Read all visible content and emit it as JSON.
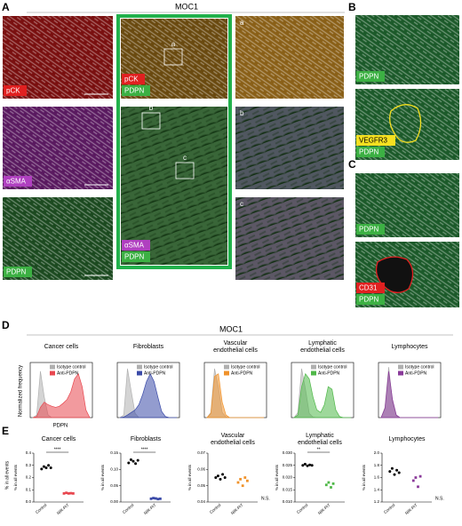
{
  "panel_labels": [
    "A",
    "B",
    "C",
    "D",
    "E"
  ],
  "panel_a": {
    "title": "MOC1",
    "images": [
      {
        "labels": [
          "pCK"
        ]
      },
      {
        "labels": [
          "αSMA"
        ]
      },
      {
        "labels": [
          "PDPN"
        ]
      },
      {
        "labels": [
          "pCK",
          "PDPN"
        ]
      },
      {
        "labels": [
          "αSMA",
          "PDPN"
        ]
      }
    ],
    "insets": [
      "a",
      "b",
      "c"
    ]
  },
  "panel_b": {
    "images": [
      {
        "labels": [
          "PDPN"
        ]
      },
      {
        "labels": [
          "VEGFR3",
          "PDPN"
        ]
      }
    ]
  },
  "panel_c": {
    "images": [
      {
        "labels": [
          "PDPN"
        ]
      },
      {
        "labels": [
          "CD31",
          "PDPN"
        ]
      }
    ]
  },
  "panel_d": {
    "title": "MOC1",
    "y_label": "Normalized frequency",
    "x_label": "PDPN",
    "charts": [
      {
        "type": "area",
        "title_lines": [
          "Cancer cells"
        ],
        "ylim": [
          0,
          100
        ],
        "series": [
          {
            "name": "Isotype control",
            "color": "#b0b0b0",
            "values": [
              0,
              5,
              90,
              40,
              5,
              0,
              0,
              0,
              0,
              0,
              0,
              0,
              0,
              0,
              0,
              0
            ]
          },
          {
            "name": "Anti-PDPN",
            "color": "#e8474f",
            "values": [
              0,
              2,
              20,
              30,
              25,
              22,
              20,
              22,
              28,
              35,
              50,
              75,
              85,
              60,
              15,
              0
            ]
          }
        ]
      },
      {
        "type": "area",
        "title_lines": [
          "Fibroblasts"
        ],
        "ylim": [
          0,
          100
        ],
        "series": [
          {
            "name": "Isotype control",
            "color": "#b0b0b0",
            "values": [
              0,
              5,
              95,
              50,
              8,
              0,
              0,
              0,
              0,
              0,
              0,
              0,
              0,
              0,
              0,
              0
            ]
          },
          {
            "name": "Anti-PDPN",
            "color": "#3a4aa8",
            "values": [
              0,
              1,
              5,
              10,
              15,
              25,
              45,
              70,
              85,
              70,
              40,
              12,
              2,
              0,
              0,
              0
            ]
          }
        ]
      },
      {
        "type": "area",
        "title_lines": [
          "Vascular",
          "endothelial cells"
        ],
        "ylim": [
          0,
          100
        ],
        "series": [
          {
            "name": "Isotype control",
            "color": "#b0b0b0",
            "values": [
              0,
              10,
              95,
              60,
              10,
              1,
              0,
              0,
              0,
              0,
              0,
              0,
              0,
              0,
              0,
              0
            ]
          },
          {
            "name": "Anti-PDPN",
            "color": "#f0922a",
            "values": [
              0,
              8,
              80,
              85,
              30,
              5,
              0,
              0,
              0,
              0,
              0,
              0,
              0,
              0,
              0,
              0
            ]
          }
        ]
      },
      {
        "type": "area",
        "title_lines": [
          "Lymphatic",
          "endothelial cells"
        ],
        "ylim": [
          0,
          100
        ],
        "series": [
          {
            "name": "Isotype control",
            "color": "#b0b0b0",
            "values": [
              0,
              10,
              95,
              55,
              8,
              1,
              0,
              0,
              0,
              0,
              0,
              0,
              0,
              0,
              0,
              0
            ]
          },
          {
            "name": "Anti-PDPN",
            "color": "#4fb848",
            "values": [
              0,
              5,
              60,
              85,
              75,
              40,
              15,
              10,
              25,
              60,
              55,
              15,
              2,
              0,
              0,
              0
            ]
          }
        ]
      },
      {
        "type": "area",
        "title_lines": [
          "Lymphocytes"
        ],
        "ylim": [
          0,
          100
        ],
        "series": [
          {
            "name": "Isotype control",
            "color": "#b0b0b0",
            "values": [
              0,
              20,
              98,
              30,
              3,
              0,
              0,
              0,
              0,
              0,
              0,
              0,
              0,
              0,
              0,
              0
            ]
          },
          {
            "name": "Anti-PDPN",
            "color": "#8a3a9a",
            "values": [
              0,
              18,
              90,
              35,
              5,
              0,
              0,
              0,
              0,
              0,
              0,
              0,
              0,
              0,
              0,
              0
            ]
          }
        ]
      }
    ]
  },
  "panel_e": {
    "y_label": "% in all events",
    "categories": [
      "Control",
      "NIR-PIT"
    ],
    "charts": [
      {
        "type": "scatter",
        "title_lines": [
          "Cancer cells"
        ],
        "ylim": [
          0,
          0.4
        ],
        "yticks": [
          {
            "value": 0,
            "label": "0.0"
          },
          0.1,
          0.2,
          0.3,
          0.4
        ],
        "series": [
          {
            "color": "#000000",
            "values": [
              0.27,
              0.29,
              0.28,
              0.3,
              0.28
            ]
          },
          {
            "color": "#e8474f",
            "values": [
              0.07,
              0.075,
              0.07,
              0.072,
              0.07
            ]
          }
        ],
        "significance": "****"
      },
      {
        "type": "scatter",
        "title_lines": [
          "Fibroblasts"
        ],
        "ylim": [
          0,
          0.15
        ],
        "yticks": [
          {
            "value": 0,
            "label": "0.00"
          },
          0.05,
          {
            "value": 0.1,
            "label": "0.10"
          },
          0.15
        ],
        "series": [
          {
            "color": "#000000",
            "values": [
              0.12,
              0.13,
              0.125,
              0.118,
              0.128
            ]
          },
          {
            "color": "#3a4aa8",
            "values": [
              0.01,
              0.012,
              0.011,
              0.009,
              0.01
            ]
          }
        ],
        "significance": "****"
      },
      {
        "type": "scatter",
        "title_lines": [
          "Vascular",
          "endothelial cells"
        ],
        "ylim": [
          0.04,
          0.07
        ],
        "yticks": [
          0.04,
          0.05,
          0.06,
          0.07
        ],
        "series": [
          {
            "color": "#000000",
            "values": [
              0.055,
              0.056,
              0.054,
              0.057,
              0.055
            ]
          },
          {
            "color": "#f0922a",
            "values": [
              0.052,
              0.054,
              0.05,
              0.055,
              0.053
            ]
          }
        ],
        "significance": "N.S."
      },
      {
        "type": "scatter",
        "title_lines": [
          "Lymphatic",
          "endothelial cells"
        ],
        "ylim": [
          0.01,
          0.03
        ],
        "yticks": [
          {
            "value": 0.01,
            "label": "0.010"
          },
          0.015,
          {
            "value": 0.02,
            "label": "0.020"
          },
          0.025,
          {
            "value": 0.03,
            "label": "0.030"
          }
        ],
        "series": [
          {
            "color": "#000000",
            "values": [
              0.025,
              0.0255,
              0.0248,
              0.0252,
              0.025
            ]
          },
          {
            "color": "#4fb848",
            "values": [
              0.017,
              0.018,
              0.016,
              0.0175
            ]
          }
        ],
        "significance": "**"
      },
      {
        "type": "scatter",
        "title_lines": [
          "Lymphocytes"
        ],
        "ylim": [
          1.2,
          2
        ],
        "yticks": [
          1.2,
          1.4,
          1.6,
          1.8,
          {
            "value": 2,
            "label": "2.0"
          }
        ],
        "series": [
          {
            "color": "#000000",
            "values": [
              1.7,
              1.75,
              1.65,
              1.72,
              1.68
            ]
          },
          {
            "color": "#8a3a9a",
            "values": [
              1.55,
              1.6,
              1.45,
              1.62
            ]
          }
        ],
        "significance": "N.S."
      }
    ]
  }
}
